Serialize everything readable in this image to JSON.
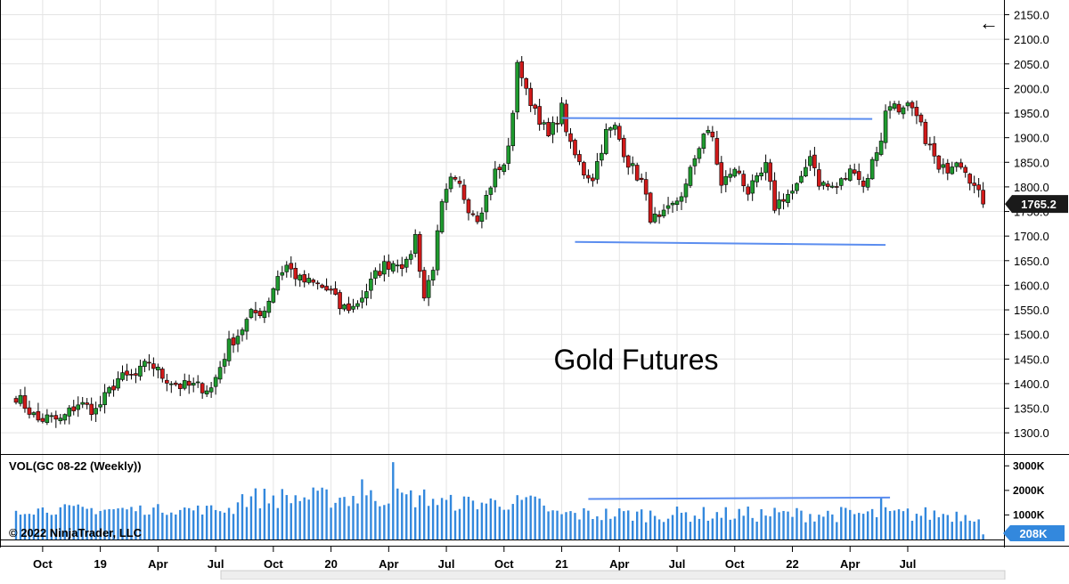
{
  "chart_data": {
    "type": "candlestick",
    "title": "Gold Futures",
    "instrument": "GC 08-22",
    "interval": "Weekly",
    "price_axis": {
      "range": [
        1275,
        2160
      ],
      "ticks": [
        "2150.0",
        "2100.0",
        "2050.0",
        "2000.0",
        "1950.0",
        "1900.0",
        "1850.0",
        "1800.0",
        "1750.0",
        "1700.0",
        "1650.0",
        "1600.0",
        "1550.0",
        "1500.0",
        "1450.0",
        "1400.0",
        "1350.0",
        "1300.0"
      ],
      "tick_values": [
        2150,
        2100,
        2050,
        2000,
        1950,
        1900,
        1850,
        1800,
        1750,
        1700,
        1650,
        1600,
        1550,
        1500,
        1450,
        1400,
        1350,
        1300
      ]
    },
    "last_price": {
      "value": 1765.2,
      "label": "1765.2"
    },
    "x_axis": {
      "labels": [
        "Oct",
        "19",
        "Apr",
        "Jul",
        "Oct",
        "20",
        "Apr",
        "Jul",
        "Oct",
        "21",
        "Apr",
        "Jul",
        "Oct",
        "22",
        "Apr",
        "Jul"
      ],
      "label_weeks": [
        6,
        19,
        32,
        45,
        58,
        71,
        84,
        97,
        110,
        123,
        136,
        149,
        162,
        175,
        188,
        201
      ]
    },
    "anchors": [
      [
        0,
        1375
      ],
      [
        3,
        1345
      ],
      [
        5,
        1325
      ],
      [
        7,
        1330
      ],
      [
        10,
        1325
      ],
      [
        14,
        1360
      ],
      [
        18,
        1345
      ],
      [
        23,
        1410
      ],
      [
        27,
        1415
      ],
      [
        30,
        1445
      ],
      [
        33,
        1415
      ],
      [
        37,
        1395
      ],
      [
        40,
        1395
      ],
      [
        44,
        1390
      ],
      [
        48,
        1480
      ],
      [
        50,
        1500
      ],
      [
        53,
        1540
      ],
      [
        56,
        1550
      ],
      [
        59,
        1620
      ],
      [
        61,
        1640
      ],
      [
        64,
        1610
      ],
      [
        68,
        1600
      ],
      [
        71,
        1585
      ],
      [
        73,
        1555
      ],
      [
        76,
        1555
      ],
      [
        79,
        1590
      ],
      [
        81,
        1620
      ],
      [
        83,
        1640
      ],
      [
        86,
        1650
      ],
      [
        88,
        1640
      ],
      [
        90,
        1700
      ],
      [
        92,
        1575
      ],
      [
        94,
        1640
      ],
      [
        96,
        1760
      ],
      [
        98,
        1810
      ],
      [
        100,
        1800
      ],
      [
        102,
        1760
      ],
      [
        104,
        1740
      ],
      [
        106,
        1780
      ],
      [
        108,
        1830
      ],
      [
        110,
        1840
      ],
      [
        112,
        1940
      ],
      [
        113,
        2060
      ],
      [
        115,
        1990
      ],
      [
        117,
        1960
      ],
      [
        119,
        1920
      ],
      [
        120,
        1900
      ],
      [
        123,
        1960
      ],
      [
        125,
        1880
      ],
      [
        128,
        1830
      ],
      [
        130,
        1820
      ],
      [
        133,
        1910
      ],
      [
        135,
        1920
      ],
      [
        138,
        1850
      ],
      [
        141,
        1810
      ],
      [
        143,
        1740
      ],
      [
        145,
        1730
      ],
      [
        148,
        1760
      ],
      [
        151,
        1800
      ],
      [
        153,
        1860
      ],
      [
        155,
        1910
      ],
      [
        157,
        1900
      ],
      [
        159,
        1800
      ],
      [
        161,
        1830
      ],
      [
        163,
        1830
      ],
      [
        165,
        1790
      ],
      [
        167,
        1810
      ],
      [
        169,
        1840
      ],
      [
        171,
        1760
      ],
      [
        173,
        1780
      ],
      [
        175,
        1790
      ],
      [
        177,
        1810
      ],
      [
        179,
        1870
      ],
      [
        181,
        1810
      ],
      [
        183,
        1800
      ],
      [
        185,
        1800
      ],
      [
        187,
        1820
      ],
      [
        189,
        1840
      ],
      [
        191,
        1800
      ],
      [
        193,
        1850
      ],
      [
        195,
        1900
      ],
      [
        196,
        1950
      ],
      [
        198,
        1980
      ],
      [
        199,
        1945
      ],
      [
        201,
        1960
      ],
      [
        203,
        1940
      ],
      [
        205,
        1900
      ],
      [
        207,
        1860
      ],
      [
        208,
        1830
      ],
      [
        210,
        1840
      ],
      [
        212,
        1860
      ],
      [
        214,
        1840
      ],
      [
        216,
        1800
      ],
      [
        218,
        1765
      ]
    ],
    "volume": {
      "label": "VOL(GC 08-22 (Weekly))",
      "ticks": [
        "3000K",
        "2000K",
        "1000K"
      ],
      "tick_values": [
        3000,
        2000,
        1000
      ],
      "range": [
        0,
        3300
      ],
      "last_label": "208K",
      "last_value": 208
    },
    "trendlines": [
      {
        "from": [
          123,
          1940
        ],
        "to": [
          193,
          1938
        ]
      },
      {
        "from": [
          126,
          1688
        ],
        "to": [
          196,
          1682
        ]
      }
    ],
    "volume_trendline": {
      "from": [
        129,
        1650
      ],
      "to": [
        197,
        1710
      ]
    },
    "annotation_text": "Gold Futures",
    "copyright": "© 2022 NinjaTrader, LLC",
    "back_arrow": "←"
  },
  "colors": {
    "up": "#1f9b2f",
    "down": "#d11a1a",
    "wick": "#000000",
    "trendline": "#5b8def",
    "volume_bar": "#3388dd",
    "grid": "#e4e4e4",
    "label_bg": "#1a1a1a",
    "volume_label_bg": "#3388dd"
  }
}
